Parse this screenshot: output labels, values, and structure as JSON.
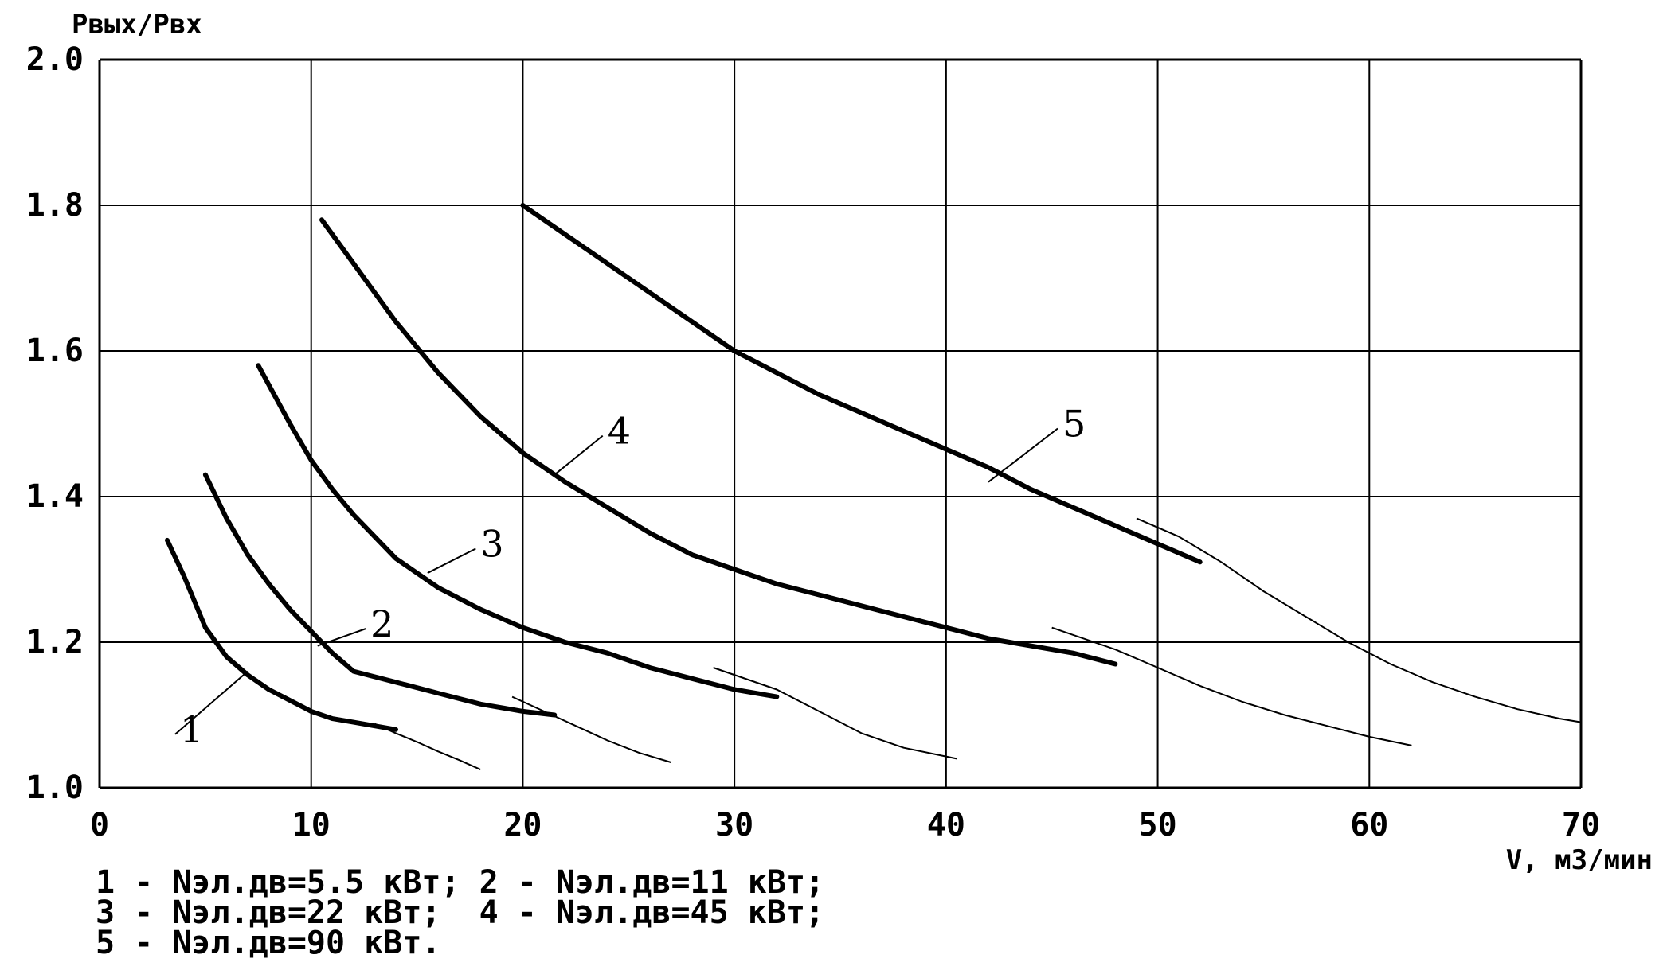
{
  "chart_data": {
    "type": "line",
    "ylabel": "Pвых/Pвх",
    "xlabel": "V, м3/мин",
    "xlim": [
      0,
      70
    ],
    "ylim": [
      1.0,
      2.0
    ],
    "grid": true,
    "x_ticks": [
      {
        "value": 0,
        "label": "0"
      },
      {
        "value": 10,
        "label": "10"
      },
      {
        "value": 20,
        "label": "20"
      },
      {
        "value": 30,
        "label": "30"
      },
      {
        "value": 40,
        "label": "40"
      },
      {
        "value": 50,
        "label": "50"
      },
      {
        "value": 60,
        "label": "60"
      },
      {
        "value": 70,
        "label": "70"
      }
    ],
    "y_ticks": [
      {
        "value": 1.0,
        "label": "1.0"
      },
      {
        "value": 1.2,
        "label": "1.2"
      },
      {
        "value": 1.4,
        "label": "1.4"
      },
      {
        "value": 1.6,
        "label": "1.6"
      },
      {
        "value": 1.8,
        "label": "1.8"
      },
      {
        "value": 2.0,
        "label": "2.0"
      }
    ],
    "legend": [
      "1 - Nэл.дв=5.5 кВт; 2 - Nэл.дв=11 кВт;",
      "3 - Nэл.дв=22 кВт;  4 - Nэл.дв=45 кВт;",
      "5 - Nэл.дв=90 кВт."
    ],
    "series": [
      {
        "name": "1",
        "label_pos": {
          "x": 3.8,
          "y": 1.08
        },
        "pointer_to": {
          "x": 7.0,
          "y": 1.16
        },
        "x": [
          3.2,
          4.0,
          5.0,
          6.0,
          7.0,
          8.0,
          9.0,
          10.0,
          11.0,
          12.0,
          13.0,
          14.0
        ],
        "y": [
          1.34,
          1.29,
          1.22,
          1.18,
          1.155,
          1.135,
          1.12,
          1.105,
          1.095,
          1.09,
          1.085,
          1.08
        ],
        "ext_x": [
          13.0,
          14.0,
          15.0,
          16.0,
          17.0,
          18.0
        ],
        "ext_y": [
          1.088,
          1.075,
          1.063,
          1.05,
          1.038,
          1.025
        ]
      },
      {
        "name": "2",
        "label_pos": {
          "x": 12.8,
          "y": 1.225
        },
        "pointer_to": {
          "x": 10.3,
          "y": 1.195
        },
        "x": [
          5.0,
          6.0,
          7.0,
          8.0,
          9.0,
          10.0,
          11.0,
          12.0,
          14.0,
          16.0,
          18.0,
          20.0,
          21.5
        ],
        "y": [
          1.43,
          1.37,
          1.32,
          1.28,
          1.245,
          1.215,
          1.185,
          1.16,
          1.145,
          1.13,
          1.115,
          1.105,
          1.1
        ],
        "ext_x": [
          19.5,
          21.0,
          22.5,
          24.0,
          25.5,
          27.0
        ],
        "ext_y": [
          1.125,
          1.105,
          1.085,
          1.065,
          1.048,
          1.035
        ]
      },
      {
        "name": "3",
        "label_pos": {
          "x": 18.0,
          "y": 1.335
        },
        "pointer_to": {
          "x": 15.5,
          "y": 1.295
        },
        "x": [
          7.5,
          9.0,
          10.0,
          11.0,
          12.0,
          14.0,
          16.0,
          18.0,
          20.0,
          22.0,
          24.0,
          26.0,
          28.0,
          30.0,
          32.0
        ],
        "y": [
          1.58,
          1.5,
          1.45,
          1.41,
          1.375,
          1.315,
          1.275,
          1.245,
          1.22,
          1.2,
          1.185,
          1.165,
          1.15,
          1.135,
          1.125
        ],
        "ext_x": [
          29.0,
          32.0,
          34.0,
          36.0,
          38.0,
          40.5
        ],
        "ext_y": [
          1.165,
          1.135,
          1.105,
          1.075,
          1.055,
          1.04
        ]
      },
      {
        "name": "4",
        "label_pos": {
          "x": 24.0,
          "y": 1.49
        },
        "pointer_to": {
          "x": 21.5,
          "y": 1.43
        },
        "x": [
          10.5,
          12.0,
          14.0,
          16.0,
          18.0,
          20.0,
          22.0,
          24.0,
          26.0,
          28.0,
          30.0,
          32.0,
          34.0,
          36.0,
          38.0,
          40.0,
          42.0,
          44.0,
          46.0,
          48.0
        ],
        "y": [
          1.78,
          1.72,
          1.64,
          1.57,
          1.51,
          1.46,
          1.42,
          1.385,
          1.35,
          1.32,
          1.3,
          1.28,
          1.265,
          1.25,
          1.235,
          1.22,
          1.205,
          1.195,
          1.185,
          1.17
        ],
        "ext_x": [
          45.0,
          48.0,
          50.0,
          52.0,
          54.0,
          56.0,
          58.0,
          60.0,
          62.0
        ],
        "ext_y": [
          1.22,
          1.19,
          1.165,
          1.14,
          1.118,
          1.1,
          1.085,
          1.07,
          1.058
        ]
      },
      {
        "name": "5",
        "label_pos": {
          "x": 45.5,
          "y": 1.5
        },
        "pointer_to": {
          "x": 42.0,
          "y": 1.42
        },
        "x": [
          20.0,
          22.0,
          24.0,
          26.0,
          28.0,
          30.0,
          32.0,
          34.0,
          36.0,
          38.0,
          40.0,
          42.0,
          44.0,
          46.0,
          48.0,
          50.0,
          52.0
        ],
        "y": [
          1.8,
          1.76,
          1.72,
          1.68,
          1.64,
          1.6,
          1.57,
          1.54,
          1.515,
          1.49,
          1.465,
          1.44,
          1.41,
          1.385,
          1.36,
          1.335,
          1.31
        ],
        "ext_x": [
          49.0,
          51.0,
          53.0,
          55.0,
          57.0,
          59.0,
          61.0,
          63.0,
          65.0,
          67.0,
          69.0,
          70.0
        ],
        "ext_y": [
          1.37,
          1.345,
          1.31,
          1.27,
          1.235,
          1.2,
          1.17,
          1.145,
          1.125,
          1.108,
          1.095,
          1.09
        ]
      }
    ]
  }
}
